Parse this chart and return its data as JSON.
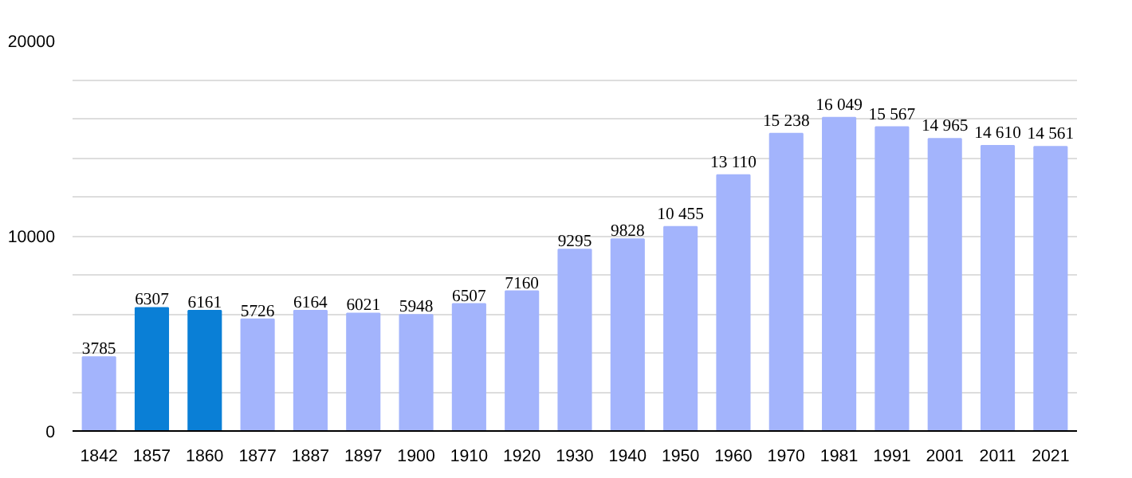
{
  "chart_data": {
    "type": "bar",
    "categories": [
      "1842",
      "1857",
      "1860",
      "1877",
      "1887",
      "1897",
      "1900",
      "1910",
      "1920",
      "1930",
      "1940",
      "1950",
      "1960",
      "1970",
      "1981",
      "1991",
      "2001",
      "2011",
      "2021"
    ],
    "values": [
      3785,
      6307,
      6161,
      5726,
      6164,
      6021,
      5948,
      6507,
      7160,
      9295,
      9828,
      10455,
      13110,
      15238,
      16049,
      15567,
      14965,
      14610,
      14561
    ],
    "colors": [
      "#a3b4fc",
      "#0a7fd6",
      "#0a7fd6",
      "#a3b4fc",
      "#a3b4fc",
      "#a3b4fc",
      "#a3b4fc",
      "#a3b4fc",
      "#a3b4fc",
      "#a3b4fc",
      "#a3b4fc",
      "#a3b4fc",
      "#a3b4fc",
      "#a3b4fc",
      "#a3b4fc",
      "#a3b4fc",
      "#a3b4fc",
      "#a3b4fc",
      "#a3b4fc"
    ],
    "value_labels": [
      "3785",
      "6307",
      "6161",
      "5726",
      "6164",
      "6021",
      "5948",
      "6507",
      "7160",
      "9295",
      "9828",
      "10 455",
      "13 110",
      "15 238",
      "16 049",
      "15 567",
      "14 965",
      "14 610",
      "14 561"
    ],
    "ylim": [
      0,
      20000
    ],
    "yticks": [
      0,
      {
        "value": 2000,
        "label": null
      },
      {
        "value": 4000,
        "label": null
      },
      {
        "value": 6000,
        "label": null
      },
      {
        "value": 8000,
        "label": null
      },
      10000,
      {
        "value": 12000,
        "label": null
      },
      {
        "value": 14000,
        "label": null
      },
      {
        "value": 16000,
        "label": null
      },
      {
        "value": 18000,
        "label": null
      },
      20000
    ],
    "grid": "y"
  }
}
